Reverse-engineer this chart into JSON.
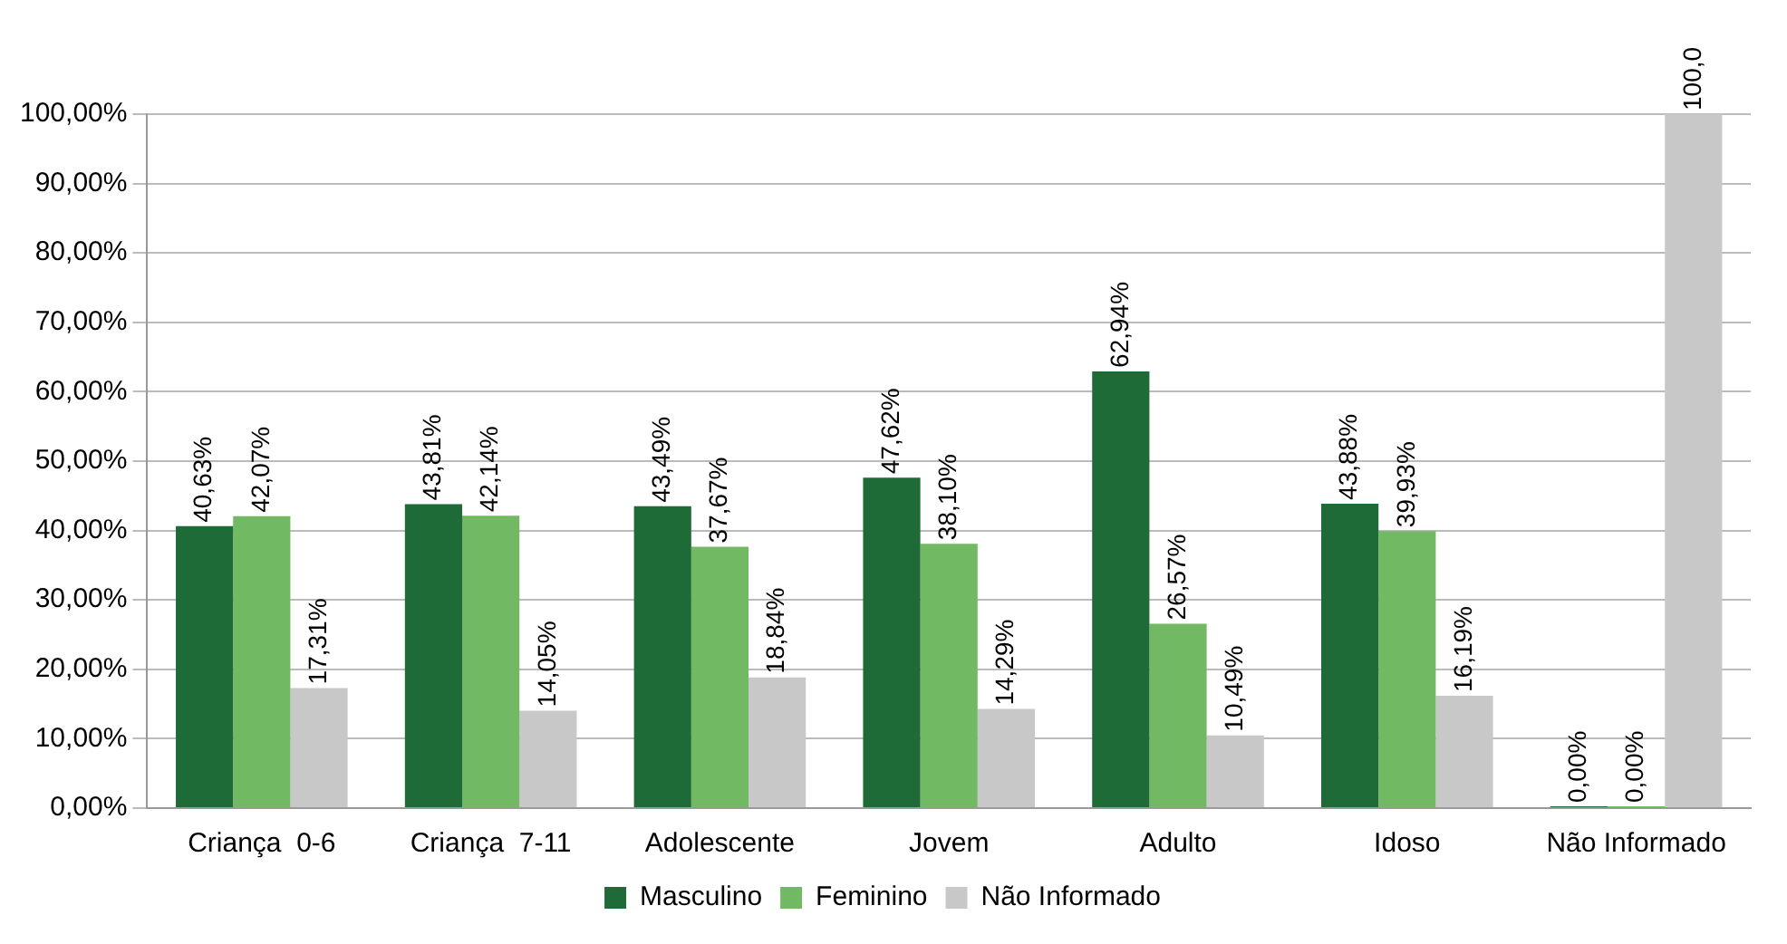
{
  "chart_data": {
    "type": "bar",
    "categories": [
      "Criança  0-6",
      "Criança  7-11",
      "Adolescente",
      "Jovem",
      "Adulto",
      "Idoso",
      "Não Informado"
    ],
    "series": [
      {
        "name": "Masculino",
        "color": "#1f6b37",
        "values": [
          40.63,
          43.81,
          43.49,
          47.62,
          62.94,
          43.88,
          0
        ],
        "value_labels": [
          "40,63%",
          "43,81%",
          "43,49%",
          "47,62%",
          "62,94%",
          "43,88%",
          "0,00%"
        ]
      },
      {
        "name": "Feminino",
        "color": "#72b963",
        "values": [
          42.07,
          42.14,
          37.67,
          38.1,
          26.57,
          39.93,
          0
        ],
        "value_labels": [
          "42,07%",
          "42,14%",
          "37,67%",
          "38,10%",
          "26,57%",
          "39,93%",
          "0,00%"
        ]
      },
      {
        "name": "Não Informado",
        "color": "#c8c8c8",
        "values": [
          17.31,
          14.05,
          18.84,
          14.29,
          10.49,
          16.19,
          100
        ],
        "value_labels": [
          "17,31%",
          "14,05%",
          "18,84%",
          "14,29%",
          "10,49%",
          "16,19%",
          "100,0"
        ]
      }
    ],
    "ylim": [
      0,
      100
    ],
    "yticks": [
      {
        "value": 0,
        "label": "0,00%"
      },
      {
        "value": 10,
        "label": "10,00%"
      },
      {
        "value": 20,
        "label": "20,00%"
      },
      {
        "value": 30,
        "label": "30,00%"
      },
      {
        "value": 40,
        "label": "40,00%"
      },
      {
        "value": 50,
        "label": "50,00%"
      },
      {
        "value": 60,
        "label": "60,00%"
      },
      {
        "value": 70,
        "label": "70,00%"
      },
      {
        "value": 80,
        "label": "80,00%"
      },
      {
        "value": 90,
        "label": "90,00%"
      },
      {
        "value": 100,
        "label": "100,00%"
      }
    ],
    "grid": "y",
    "legend": "bottom"
  }
}
